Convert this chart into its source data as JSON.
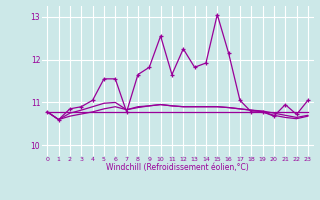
{
  "xlabel": "Windchill (Refroidissement éolien,°C)",
  "bg_color": "#cce8e8",
  "grid_color": "#ffffff",
  "line_color": "#990099",
  "xlim": [
    -0.5,
    23.5
  ],
  "ylim": [
    9.75,
    13.25
  ],
  "xticks": [
    0,
    1,
    2,
    3,
    4,
    5,
    6,
    7,
    8,
    9,
    10,
    11,
    12,
    13,
    14,
    15,
    16,
    17,
    18,
    19,
    20,
    21,
    22,
    23
  ],
  "yticks": [
    10,
    11,
    12,
    13
  ],
  "s1_x": [
    0,
    1,
    2,
    3,
    4,
    5,
    6,
    7,
    8,
    9,
    10,
    11,
    12,
    13,
    14,
    15,
    16,
    17,
    18,
    19,
    20,
    21,
    22,
    23
  ],
  "s1_y": [
    10.78,
    10.6,
    10.85,
    10.9,
    11.05,
    11.55,
    11.55,
    10.78,
    11.65,
    11.82,
    12.55,
    11.65,
    12.25,
    11.82,
    11.92,
    13.05,
    12.15,
    11.05,
    10.78,
    10.78,
    10.68,
    10.95,
    10.72,
    11.05
  ],
  "s2_x": [
    0,
    1,
    2,
    3,
    4,
    5,
    6,
    7,
    8,
    9,
    10,
    11,
    12,
    13,
    14,
    15,
    16,
    17,
    18,
    19,
    20,
    21,
    22,
    23
  ],
  "s2_y": [
    10.78,
    10.78,
    10.78,
    10.78,
    10.78,
    10.78,
    10.78,
    10.78,
    10.78,
    10.78,
    10.78,
    10.78,
    10.78,
    10.78,
    10.78,
    10.78,
    10.78,
    10.78,
    10.78,
    10.78,
    10.78,
    10.78,
    10.78,
    10.78
  ],
  "s3_x": [
    0,
    1,
    2,
    3,
    4,
    5,
    6,
    7,
    8,
    9,
    10,
    11,
    12,
    13,
    14,
    15,
    16,
    17,
    18,
    19,
    20,
    21,
    22,
    23
  ],
  "s3_y": [
    10.78,
    10.6,
    10.68,
    10.73,
    10.78,
    10.85,
    10.9,
    10.83,
    10.88,
    10.92,
    10.95,
    10.92,
    10.9,
    10.9,
    10.9,
    10.9,
    10.88,
    10.85,
    10.82,
    10.8,
    10.75,
    10.7,
    10.65,
    10.7
  ],
  "s4_x": [
    0,
    1,
    2,
    3,
    4,
    5,
    6,
    7,
    8,
    9,
    10,
    11,
    12,
    13,
    14,
    15,
    16,
    17,
    18,
    19,
    20,
    21,
    22,
    23
  ],
  "s4_y": [
    10.78,
    10.6,
    10.75,
    10.82,
    10.9,
    10.98,
    11.0,
    10.83,
    10.9,
    10.92,
    10.95,
    10.92,
    10.9,
    10.9,
    10.9,
    10.9,
    10.88,
    10.85,
    10.82,
    10.78,
    10.7,
    10.65,
    10.62,
    10.68
  ]
}
